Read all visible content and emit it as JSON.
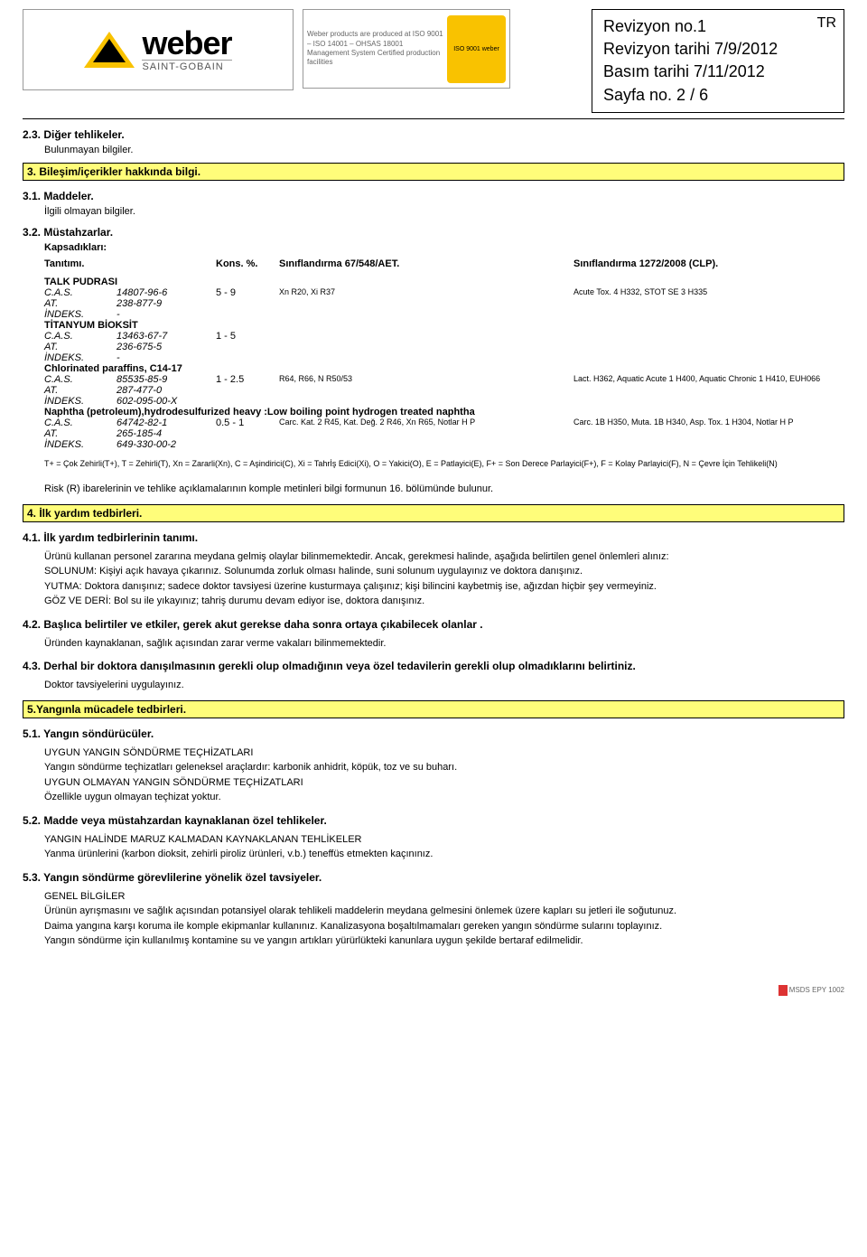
{
  "header": {
    "logo_main": "weber",
    "logo_sub": "SAINT-GOBAIN",
    "cert_text": "Weber products are produced at ISO 9001 – ISO 14001 – OHSAS 18001 Management System Certified production facilities",
    "cert_badge": "ISO 9001 weber",
    "rev_no": "Revizyon no.1",
    "tr": "TR",
    "rev_date": "Revizyon tarihi 7/9/2012",
    "print_date": "Basım tarihi 7/11/2012",
    "page": "Sayfa no.  2 / 6"
  },
  "s23": {
    "title": "2.3. Diğer tehlikeler.",
    "body": "Bulunmayan bilgiler."
  },
  "s3": {
    "bar": "3. Bileşim/içerikler hakkında bilgi.",
    "s31_title": "3.1. Maddeler.",
    "s31_body": "İlgili olmayan bilgiler.",
    "s32_title": "3.2. Müstahzarlar.",
    "s32_body": "Kapsadıkları:",
    "cols": {
      "c1": "Tanıtımı.",
      "c2": "Kons. %.",
      "c3": "Sınıflandırma 67/548/AET.",
      "c4": "Sınıflandırma 1272/2008 (CLP)."
    },
    "ingredients": [
      {
        "name": "TALK PUDRASI",
        "cas_l": "C.A.S.",
        "cas": "14807-96-6",
        "conc": "5 - 9",
        "class1": "Xn R20, Xi R37",
        "class2": "Acute Tox. 4 H332, STOT SE 3 H335",
        "at_l": "AT.",
        "at": "238-877-9",
        "idx_l": "İNDEKS.",
        "idx": "-"
      },
      {
        "name": "TİTANYUM BİOKSİT",
        "cas_l": "C.A.S.",
        "cas": "13463-67-7",
        "conc": "1 - 5",
        "class1": "",
        "class2": "",
        "at_l": "AT.",
        "at": "236-675-5",
        "idx_l": "İNDEKS.",
        "idx": "-"
      },
      {
        "name": "Chlorinated paraffins, C14-17",
        "cas_l": "C.A.S.",
        "cas": "85535-85-9",
        "conc": "1 - 2.5",
        "class1": "R64, R66, N R50/53",
        "class2": "Lact. H362, Aquatic Acute 1 H400, Aquatic Chronic 1 H410, EUH066",
        "at_l": "AT.",
        "at": "287-477-0",
        "idx_l": "İNDEKS.",
        "idx": "602-095-00-X"
      },
      {
        "name": "Naphtha (petroleum),hydrodesulfurized heavy :Low boiling point hydrogen treated naphtha",
        "cas_l": "C.A.S.",
        "cas": "64742-82-1",
        "conc": "0.5 - 1",
        "class1": "Carc. Kat. 2 R45, Kat. Değ. 2 R46, Xn R65, Notlar H P",
        "class2": "Carc. 1B H350, Muta. 1B H340, Asp. Tox. 1 H304, Notlar H P",
        "at_l": "AT.",
        "at": "265-185-4",
        "idx_l": "İNDEKS.",
        "idx": "649-330-00-2"
      }
    ],
    "legend": "T+ = Çok Zehirli(T+), T = Zehirli(T), Xn = Zararli(Xn), C = Aşindirici(C), Xi = Tahrİş Edici(Xi), O = Yakici(O), E = Patlayici(E), F+ = Son Derece Parlayici(F+), F = Kolay Parlayici(F), N = Çevre İçin Tehlikeli(N)",
    "note16": "Risk (R) ibarelerinin ve tehlike açıklamalarının komple metinleri bilgi formunun 16. bölümünde bulunur."
  },
  "s4": {
    "bar": "4. İlk yardım tedbirleri.",
    "s41_title": "4.1. İlk yardım tedbirlerinin tanımı.",
    "s41_body": "Ürünü kullanan personel zararına meydana gelmiş olaylar bilinmemektedir. Ancak, gerekmesi halinde, aşağıda belirtilen genel önlemleri alınız:\nSOLUNUM: Kişiyi açık havaya çıkarınız. Solunumda zorluk olması halinde, suni solunum uygulayınız ve doktora danışınız.\nYUTMA: Doktora danışınız; sadece doktor tavsiyesi üzerine kusturmaya çalışınız; kişi bilincini kaybetmiş ise, ağızdan hiçbir şey vermeyiniz.\nGÖZ VE DERİ: Bol su ile yıkayınız; tahriş durumu devam ediyor ise, doktora danışınız.",
    "s42_title": "4.2. Başlıca belirtiler ve etkiler, gerek akut gerekse daha sonra ortaya çıkabilecek olanlar .",
    "s42_body": "Üründen kaynaklanan, sağlık açısından zarar verme vakaları bilinmemektedir.",
    "s43_title": "4.3. Derhal bir doktora danışılmasının gerekli olup olmadığının veya özel tedavilerin gerekli olup olmadıklarını belirtiniz.",
    "s43_body": "Doktor tavsiyelerini uygulayınız."
  },
  "s5": {
    "bar": "5.Yangınla mücadele tedbirleri.",
    "s51_title": "5.1. Yangın söndürücüler.",
    "s51_l1": "UYGUN YANGIN SÖNDÜRME TEÇHİZATLARI",
    "s51_l2": "Yangın söndürme teçhizatları geleneksel araçlardır: karbonik anhidrit, köpük, toz ve su buharı.",
    "s51_l3": "UYGUN OLMAYAN YANGIN SÖNDÜRME TEÇHİZATLARI",
    "s51_l4": "Özellikle uygun olmayan teçhizat yoktur.",
    "s52_title": "5.2. Madde veya müstahzardan kaynaklanan özel tehlikeler.",
    "s52_l1": "YANGIN HALİNDE MARUZ KALMADAN KAYNAKLANAN TEHLİKELER",
    "s52_l2": "Yanma ürünlerini (karbon dioksit, zehirli piroliz ürünleri, v.b.) teneffüs etmekten kaçınınız.",
    "s53_title": "5.3. Yangın söndürme görevlilerine yönelik özel tavsiyeler.",
    "s53_l1": "GENEL BİLGİLER",
    "s53_l2": "Ürünün ayrışmasını ve sağlık açısından potansiyel olarak tehlikeli maddelerin meydana gelmesini önlemek üzere kapları su jetleri ile soğutunuz.",
    "s53_l3": "Daima yangına karşı koruma ile komple ekipmanlar kullanınız. Kanalizasyona boşaltılmamaları gereken yangın söndürme sularını toplayınız.",
    "s53_l4": "Yangın söndürme için kullanılmış kontamine su ve yangın artıkları yürürlükteki kanunlara uygun şekilde bertaraf edilmelidir."
  },
  "footer": "MSDS EPY 1002",
  "colors": {
    "section_bg": "#fffd7a",
    "border": "#000000",
    "logo_yellow": "#f9c200"
  }
}
